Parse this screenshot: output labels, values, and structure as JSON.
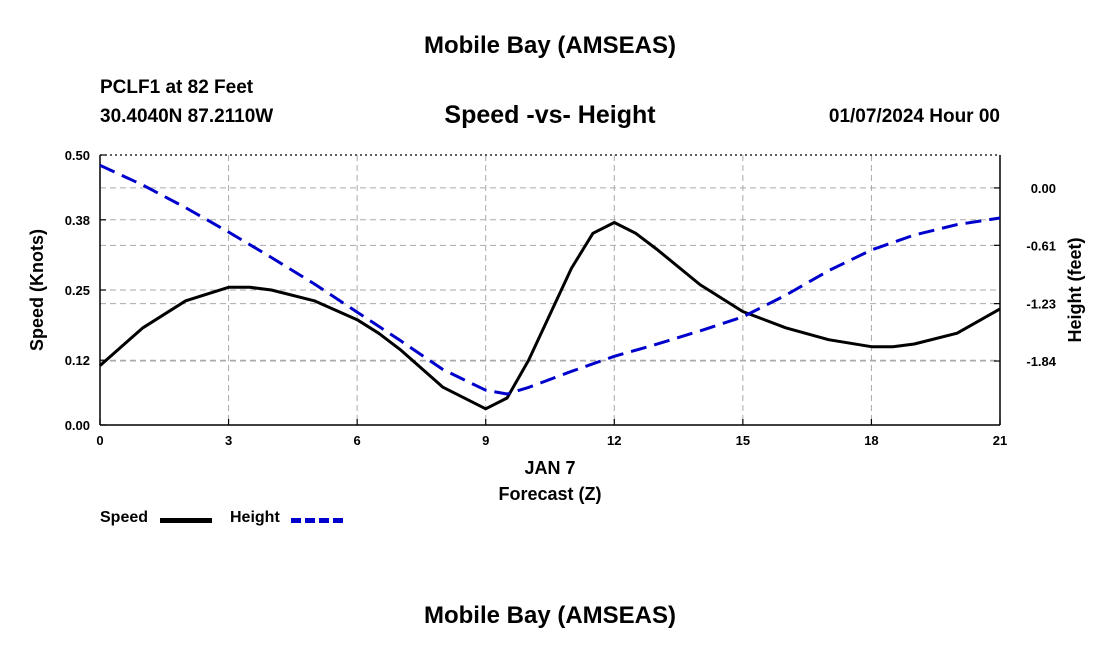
{
  "header": {
    "title": "Mobile Bay (AMSEAS)",
    "station": "PCLF1 at 82 Feet",
    "coords": "30.4040N  87.2110W",
    "plot_title": "Speed -vs- Height",
    "date": "01/07/2024 Hour 00"
  },
  "footer": {
    "title": "Mobile Bay (AMSEAS)"
  },
  "legend": {
    "speed_label": "Speed",
    "height_label": "Height"
  },
  "colors": {
    "speed": "#000000",
    "height": "#0000cc"
  },
  "chart_data": {
    "type": "line",
    "title": "Speed -vs- Height",
    "xlabel": "Forecast (Z)",
    "xsublabel": "JAN 7",
    "ylabel": "Speed (Knots)",
    "y2label": "Height (feet)",
    "xlim": [
      0,
      21
    ],
    "ylim": [
      0,
      0.5
    ],
    "y2lim": [
      -2.52,
      0.35
    ],
    "x_ticks": [
      "0",
      "3",
      "6",
      "9",
      "12",
      "15",
      "18",
      "21"
    ],
    "y_ticks": [
      "0.00",
      "0.12",
      "0.25",
      "0.38",
      "0.50"
    ],
    "y2_ticks": [
      "0.00",
      "-0.61",
      "-1.23",
      "-1.84"
    ],
    "grid": true,
    "legend_position": "bottom-left",
    "series": [
      {
        "name": "Speed",
        "axis": "left",
        "style": "solid",
        "x": [
          0,
          1,
          2,
          3,
          3.5,
          4,
          5,
          6,
          6.5,
          7,
          8,
          9,
          9.5,
          10,
          11,
          11.5,
          12,
          12.5,
          13,
          14,
          15,
          16,
          17,
          18,
          18.5,
          19,
          20,
          21
        ],
        "values": [
          0.11,
          0.18,
          0.23,
          0.255,
          0.255,
          0.25,
          0.23,
          0.195,
          0.17,
          0.14,
          0.07,
          0.03,
          0.05,
          0.12,
          0.29,
          0.355,
          0.375,
          0.355,
          0.325,
          0.26,
          0.21,
          0.18,
          0.158,
          0.145,
          0.145,
          0.15,
          0.17,
          0.215
        ]
      },
      {
        "name": "Height",
        "axis": "right",
        "style": "dashed",
        "x": [
          0,
          1,
          2,
          3,
          4,
          5,
          6,
          7,
          8,
          9,
          9.5,
          10,
          11,
          12,
          13,
          14,
          15,
          16,
          17,
          18,
          19,
          20,
          21
        ],
        "values": [
          0.24,
          0.03,
          -0.21,
          -0.47,
          -0.74,
          -1.02,
          -1.32,
          -1.62,
          -1.93,
          -2.15,
          -2.19,
          -2.12,
          -1.95,
          -1.79,
          -1.66,
          -1.52,
          -1.37,
          -1.14,
          -0.88,
          -0.66,
          -0.5,
          -0.39,
          -0.32
        ]
      }
    ]
  }
}
